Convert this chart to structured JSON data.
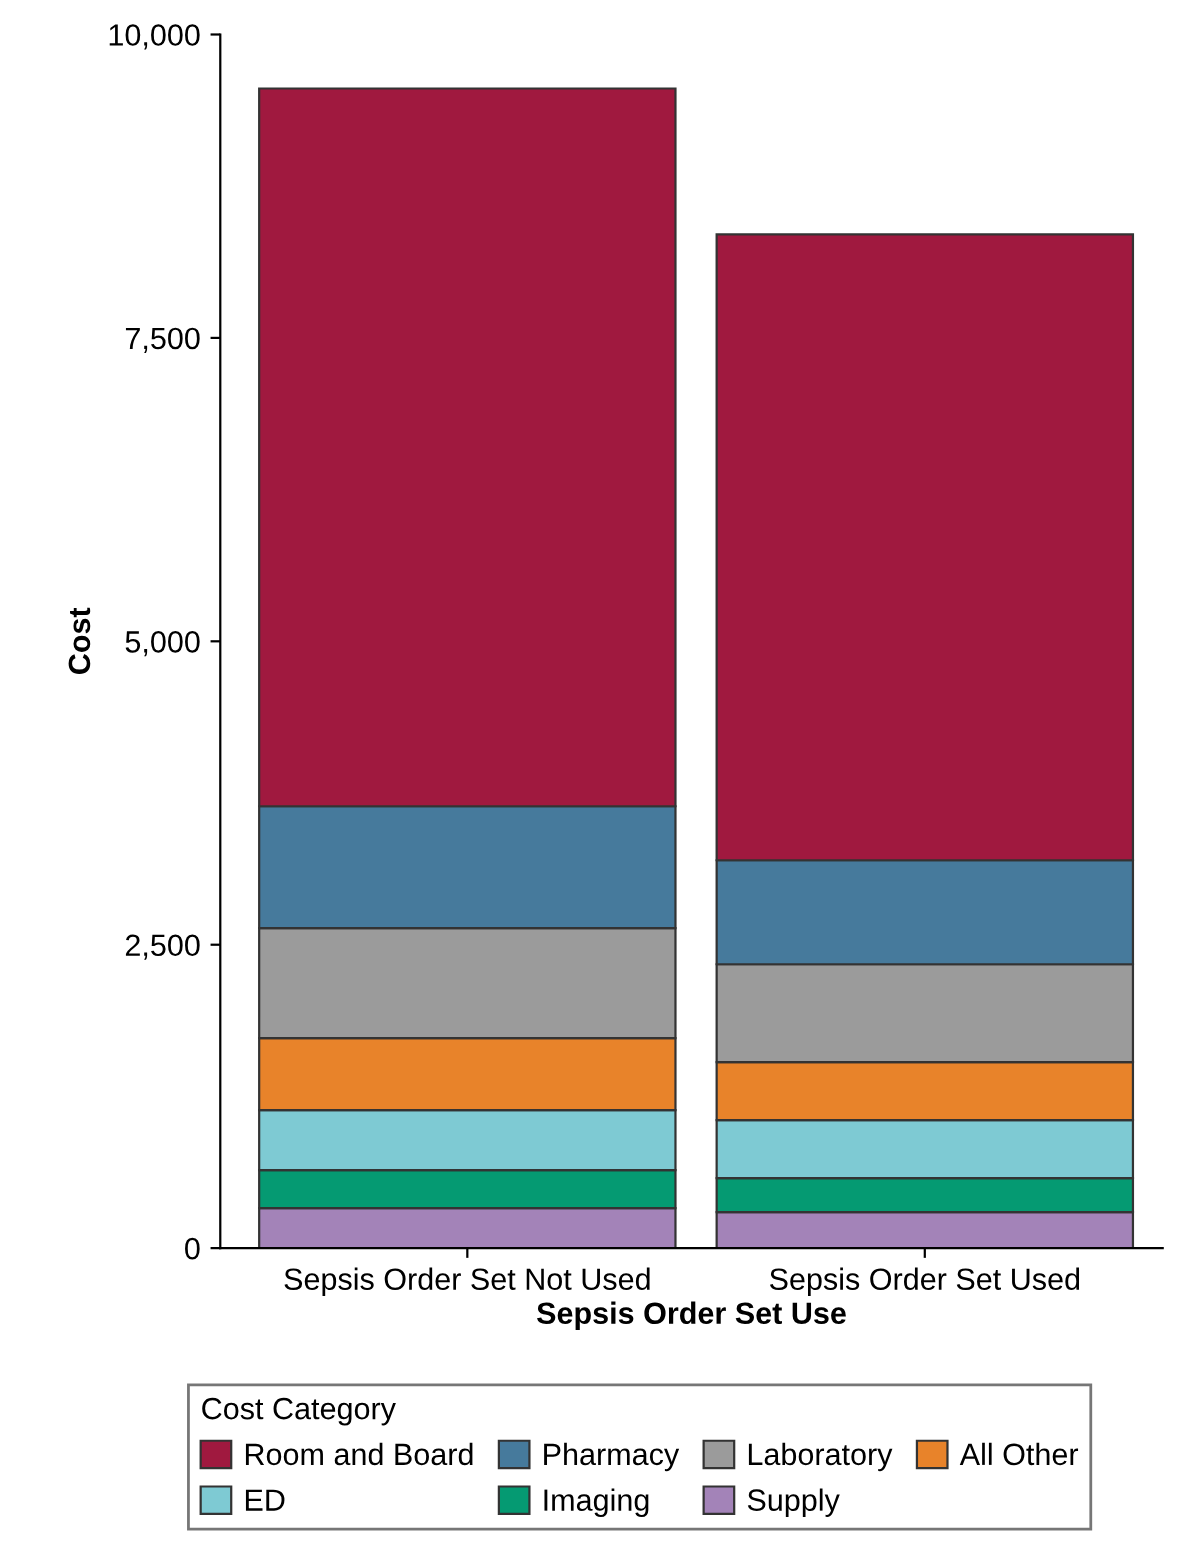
{
  "chart_data": {
    "type": "bar",
    "stacked": true,
    "xlabel": "Sepsis Order Set Use",
    "ylabel": "Cost",
    "legend_title": "Cost Category",
    "legend": "bottom",
    "categories": [
      "Sepsis Order Set Not Used",
      "Sepsis Order Set Used"
    ],
    "ylim": [
      0,
      10000
    ],
    "yticks": [
      {
        "value": 0,
        "label": "0"
      },
      {
        "value": 2500,
        "label": "2,500"
      },
      {
        "value": 5000,
        "label": "5,000"
      },
      {
        "value": 7500,
        "label": "7,500"
      },
      {
        "value": 10000,
        "label": "10,000"
      }
    ],
    "series": [
      {
        "name": "Supply",
        "color": "#a383b8",
        "values": [
          330,
          297
        ]
      },
      {
        "name": "Imaging",
        "color": "#059a72",
        "values": [
          312,
          280
        ]
      },
      {
        "name": "ED",
        "color": "#7ecad3",
        "values": [
          495,
          477
        ]
      },
      {
        "name": "All Other",
        "color": "#e8832a",
        "values": [
          593,
          478
        ]
      },
      {
        "name": "Laboratory",
        "color": "#9b9b9b",
        "values": [
          906,
          807
        ]
      },
      {
        "name": "Pharmacy",
        "color": "#467a9c",
        "values": [
          1005,
          857
        ]
      },
      {
        "name": "Room and Board",
        "color": "#a0193f",
        "values": [
          5914,
          5157
        ]
      }
    ]
  }
}
